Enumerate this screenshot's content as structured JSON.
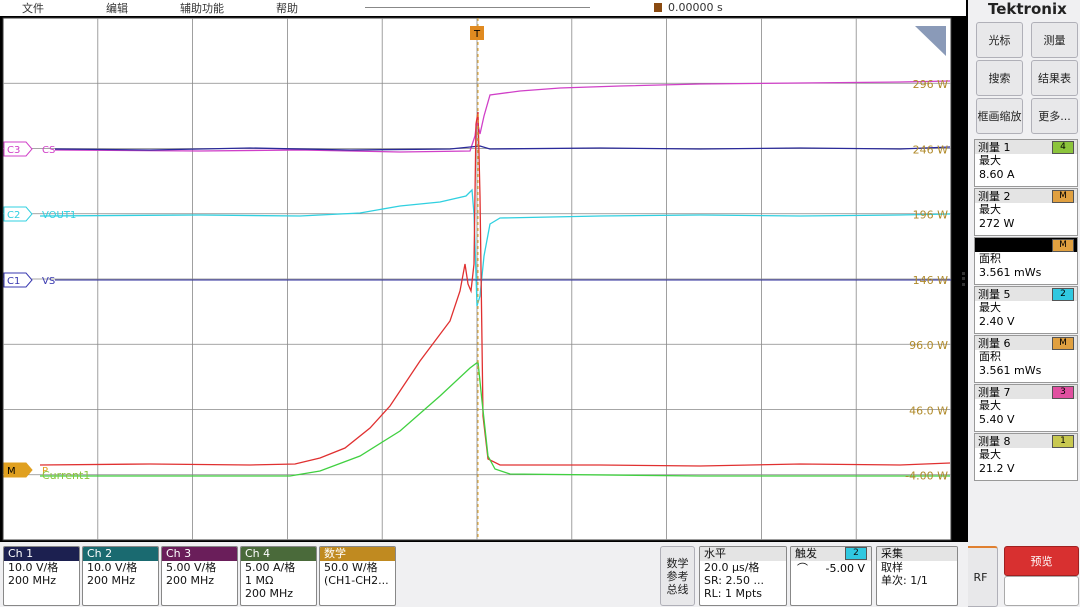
{
  "menu": [
    "文件",
    "编辑",
    "辅助功能",
    "帮助"
  ],
  "time_offset": "0.00000 s",
  "trigger_marker": "T",
  "scale_labels": [
    "296 W",
    "246 W",
    "196 W",
    "146 W",
    "96.0 W",
    "46.0 W",
    "-4.00 W"
  ],
  "channel_markers": [
    {
      "tag": "C3",
      "name": "CS",
      "color": "#d040c8"
    },
    {
      "tag": "C2",
      "name": "VOUT1",
      "color": "#30d0e0"
    },
    {
      "tag": "C1",
      "name": "VS",
      "color": "#3838b0"
    },
    {
      "tag": "M",
      "name": "P",
      "color": "#e0a020"
    }
  ],
  "current_label": "Current1",
  "logo": "Tektronix",
  "buttons": [
    "光标",
    "测量",
    "搜索",
    "结果表",
    "框画缩放",
    "更多..."
  ],
  "measurements": [
    {
      "title": "测量 1",
      "source": "4",
      "badge": "#8cc43c",
      "stat": "最大",
      "value": "8.60 A"
    },
    {
      "title": "测量 2",
      "source": "M",
      "badge": "#e0a040",
      "stat": "最大",
      "value": "272 W"
    },
    {
      "source": "M",
      "badge": "#e0a040",
      "stat": "面积",
      "value": "3.561 mWs"
    },
    {
      "title": "测量 5",
      "source": "2",
      "badge": "#30c8e0",
      "stat": "最大",
      "value": "2.40 V"
    },
    {
      "title": "测量 6",
      "source": "M",
      "badge": "#e0a040",
      "stat": "面积",
      "value": "3.561 mWs"
    },
    {
      "title": "测量 7",
      "source": "3",
      "badge": "#e050a0",
      "stat": "最大",
      "value": "5.40 V"
    },
    {
      "title": "测量 8",
      "source": "1",
      "badge": "#c8c850",
      "stat": "最大",
      "value": "21.2 V"
    }
  ],
  "channels": [
    {
      "title": "Ch 1",
      "color": "#1c2050",
      "lines": [
        "10.0 V/格",
        "200 MHz"
      ]
    },
    {
      "title": "Ch 2",
      "color": "#1a6a70",
      "lines": [
        "10.0 V/格",
        "200 MHz"
      ]
    },
    {
      "title": "Ch 3",
      "color": "#6a1e5a",
      "lines": [
        "5.00 V/格",
        "200 MHz"
      ]
    },
    {
      "title": "Ch 4",
      "color": "#4a6a3a",
      "lines": [
        "5.00 A/格",
        "1 MΩ",
        "200 MHz"
      ]
    },
    {
      "title": "数学",
      "color": "#c08a20",
      "lines": [
        "50.0 W/格",
        "(CH1-CH2..."
      ]
    }
  ],
  "math_ref_bus": [
    "数学",
    "参考",
    "总线"
  ],
  "horizontal": {
    "title": "水平",
    "lines": [
      "20.0 μs/格",
      "SR: 2.50 ...",
      "RL: 1 Mpts"
    ]
  },
  "trigger": {
    "title": "触发",
    "source": "2",
    "level": "-5.00 V"
  },
  "acquire": {
    "title": "采集",
    "lines": [
      "取样",
      "单次: 1/1"
    ]
  },
  "rf": "RF",
  "preview": "预览"
}
